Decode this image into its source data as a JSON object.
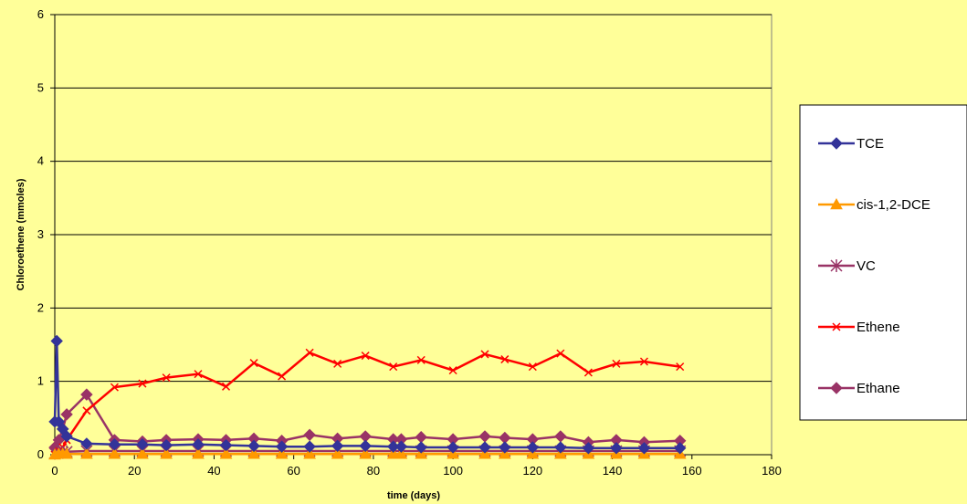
{
  "chart_data": {
    "type": "line",
    "title": "",
    "xlabel": "time (days)",
    "ylabel": "Chloroethene (mmoles)",
    "xlim": [
      0,
      180
    ],
    "ylim": [
      0,
      6
    ],
    "xticks": [
      0,
      20,
      40,
      60,
      80,
      100,
      120,
      140,
      160,
      180
    ],
    "yticks": [
      0,
      1,
      2,
      3,
      4,
      5,
      6
    ],
    "grid": "horizontal",
    "legend_position": "right",
    "background": "#FFFF99",
    "plot_background": "#FFFF99",
    "series": [
      {
        "name": "TCE",
        "color": "#333399",
        "marker": "diamond",
        "x": [
          0,
          0.5,
          1,
          2,
          3,
          8,
          15,
          22,
          28,
          36,
          43,
          50,
          57,
          64,
          71,
          78,
          85,
          87,
          92,
          100,
          108,
          113,
          120,
          127,
          134,
          141,
          148,
          157
        ],
        "y": [
          0.45,
          1.55,
          0.45,
          0.35,
          0.25,
          0.15,
          0.14,
          0.14,
          0.13,
          0.14,
          0.13,
          0.12,
          0.11,
          0.11,
          0.12,
          0.12,
          0.11,
          0.11,
          0.1,
          0.1,
          0.1,
          0.1,
          0.1,
          0.1,
          0.09,
          0.09,
          0.09,
          0.09
        ]
      },
      {
        "name": "cis-1,2-DCE",
        "color": "#FF9900",
        "marker": "triangle",
        "x": [
          0,
          1,
          2,
          3,
          8,
          15,
          22,
          28,
          36,
          43,
          50,
          57,
          64,
          71,
          78,
          85,
          87,
          92,
          100,
          108,
          113,
          120,
          127,
          134,
          141,
          148,
          157
        ],
        "y": [
          0.0,
          0.01,
          0.01,
          0.01,
          0.01,
          0.01,
          0.01,
          0.01,
          0.01,
          0.01,
          0.01,
          0.01,
          0.01,
          0.01,
          0.01,
          0.01,
          0.01,
          0.01,
          0.01,
          0.01,
          0.01,
          0.01,
          0.01,
          0.01,
          0.01,
          0.01,
          0.01
        ]
      },
      {
        "name": "VC",
        "color": "#993366",
        "marker": "star",
        "x": [
          0,
          1,
          2,
          3,
          8,
          15,
          22,
          28,
          36,
          43,
          50,
          57,
          64,
          71,
          78,
          85,
          87,
          92,
          100,
          108,
          113,
          120,
          127,
          134,
          141,
          148,
          157
        ],
        "y": [
          0.02,
          0.03,
          0.03,
          0.04,
          0.05,
          0.05,
          0.05,
          0.05,
          0.05,
          0.05,
          0.05,
          0.05,
          0.05,
          0.05,
          0.05,
          0.05,
          0.05,
          0.05,
          0.05,
          0.05,
          0.05,
          0.05,
          0.05,
          0.05,
          0.05,
          0.05,
          0.05
        ]
      },
      {
        "name": "Ethene",
        "color": "#FF0000",
        "marker": "x",
        "x": [
          0,
          1,
          2,
          3,
          8,
          15,
          22,
          28,
          36,
          43,
          50,
          57,
          64,
          71,
          78,
          85,
          92,
          100,
          108,
          113,
          120,
          127,
          134,
          141,
          148,
          157
        ],
        "y": [
          0.0,
          0.05,
          0.1,
          0.2,
          0.6,
          0.92,
          0.97,
          1.05,
          1.1,
          0.93,
          1.25,
          1.07,
          1.39,
          1.24,
          1.35,
          1.2,
          1.29,
          1.15,
          1.37,
          1.3,
          1.2,
          1.38,
          1.12,
          1.24,
          1.27,
          1.2
        ]
      },
      {
        "name": "Ethane",
        "color": "#993366",
        "marker": "diamond",
        "x": [
          0,
          1,
          2,
          3,
          8,
          15,
          22,
          28,
          36,
          43,
          50,
          57,
          64,
          71,
          78,
          85,
          87,
          92,
          100,
          108,
          113,
          120,
          127,
          134,
          141,
          148,
          157
        ],
        "y": [
          0.1,
          0.2,
          0.35,
          0.55,
          0.82,
          0.2,
          0.18,
          0.2,
          0.21,
          0.2,
          0.22,
          0.19,
          0.27,
          0.22,
          0.25,
          0.21,
          0.21,
          0.24,
          0.21,
          0.25,
          0.23,
          0.21,
          0.25,
          0.17,
          0.2,
          0.17,
          0.19
        ]
      }
    ]
  }
}
